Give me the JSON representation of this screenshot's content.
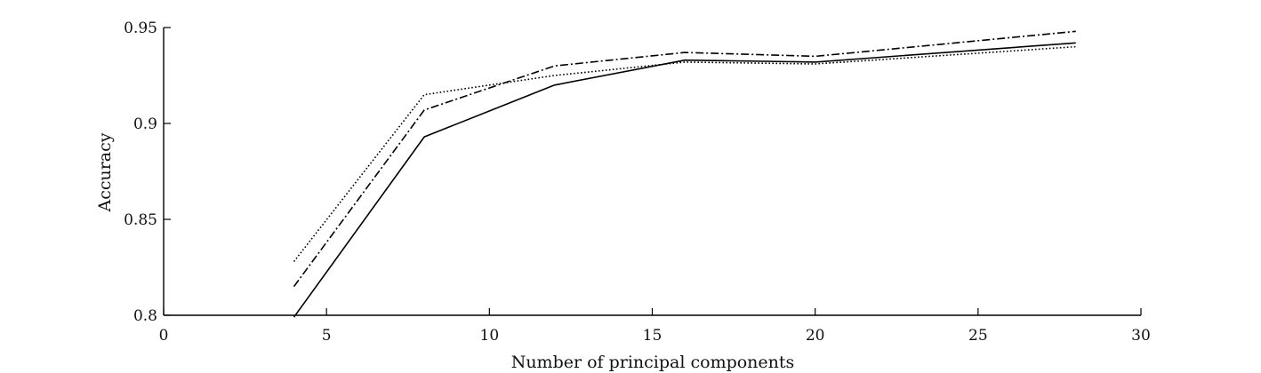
{
  "chart_data": {
    "type": "line",
    "title": "",
    "xlabel": "Number of principal components",
    "ylabel": "Accuracy",
    "xlim": [
      0,
      30
    ],
    "ylim": [
      0.8,
      0.95
    ],
    "xticks": [
      0,
      5,
      10,
      15,
      20,
      25,
      30
    ],
    "xtick_labels": [
      "0",
      "5",
      "10",
      "15",
      "20",
      "25",
      "30"
    ],
    "yticks": [
      0.8,
      0.85,
      0.9,
      0.95
    ],
    "ytick_labels": [
      "0.8",
      "0.85",
      "0.9",
      "0.95"
    ],
    "grid": false,
    "legend": "none",
    "x": [
      4,
      8,
      12,
      16,
      20,
      28
    ],
    "series": [
      {
        "style": "solid",
        "color": "#000000",
        "values": [
          0.799,
          0.893,
          0.92,
          0.933,
          0.932,
          0.942
        ]
      },
      {
        "style": "dashdot",
        "color": "#000000",
        "values": [
          0.815,
          0.907,
          0.93,
          0.937,
          0.935,
          0.948
        ]
      },
      {
        "style": "dotted",
        "color": "#000000",
        "values": [
          0.828,
          0.915,
          0.925,
          0.932,
          0.931,
          0.94
        ]
      }
    ]
  }
}
